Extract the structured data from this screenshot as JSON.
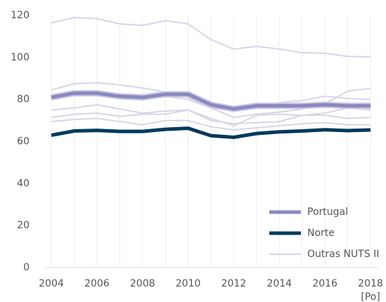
{
  "chart_data": {
    "type": "line",
    "x": [
      2004,
      2005,
      2006,
      2007,
      2008,
      2009,
      2010,
      2011,
      2012,
      2013,
      2014,
      2015,
      2016,
      2017,
      2018
    ],
    "xlim": [
      2004,
      2018
    ],
    "xticks": [
      2004,
      2006,
      2008,
      2010,
      2012,
      2014,
      2016,
      2018
    ],
    "x_note": "[Po]",
    "ylim": [
      0,
      120
    ],
    "yticks": [
      0,
      20,
      40,
      60,
      80,
      100,
      120
    ],
    "grid": true,
    "legend": "lower right",
    "series": [
      {
        "name": "Outras NUTS II",
        "color": "#d6d5e8",
        "lines": [
          [
            116.5,
            119,
            118.5,
            116,
            115.3,
            117.5,
            116,
            108.5,
            104,
            105.3,
            104,
            102.3,
            102,
            100.5,
            100.3
          ],
          [
            84.6,
            87.5,
            88,
            87,
            85.5,
            83.5,
            81,
            76,
            71.5,
            73,
            74,
            75.5,
            78,
            84,
            85.3
          ],
          [
            80,
            82,
            82,
            80.5,
            80.5,
            81.5,
            80,
            76,
            74.5,
            77,
            78.5,
            79.5,
            81.5,
            80.5,
            80
          ],
          [
            75,
            76,
            77.5,
            75.5,
            73.5,
            74.5,
            75,
            70,
            68.5,
            69,
            69.5,
            72.5,
            73.5,
            76,
            75
          ],
          [
            71.5,
            73,
            73.5,
            72,
            73,
            73,
            75,
            71,
            67.5,
            72.5,
            73,
            72.5,
            72.5,
            71,
            71.5
          ],
          [
            69.5,
            70.5,
            71,
            69.5,
            68,
            70,
            70,
            67,
            65.5,
            66.5,
            67.5,
            68.5,
            69,
            68,
            68
          ]
        ]
      },
      {
        "name": "Portugal",
        "color": "#8b88c0",
        "values": [
          81,
          83,
          83,
          81.5,
          81,
          82.5,
          82.5,
          77.5,
          75.5,
          77,
          77,
          77,
          77.5,
          77,
          77
        ]
      },
      {
        "name": "Norte",
        "color": "#003a5c",
        "values": [
          63,
          65,
          65.3,
          64.8,
          64.8,
          65.8,
          66.3,
          62.8,
          62,
          63.8,
          64.6,
          65,
          65.6,
          65.2,
          65.5
        ]
      }
    ]
  }
}
